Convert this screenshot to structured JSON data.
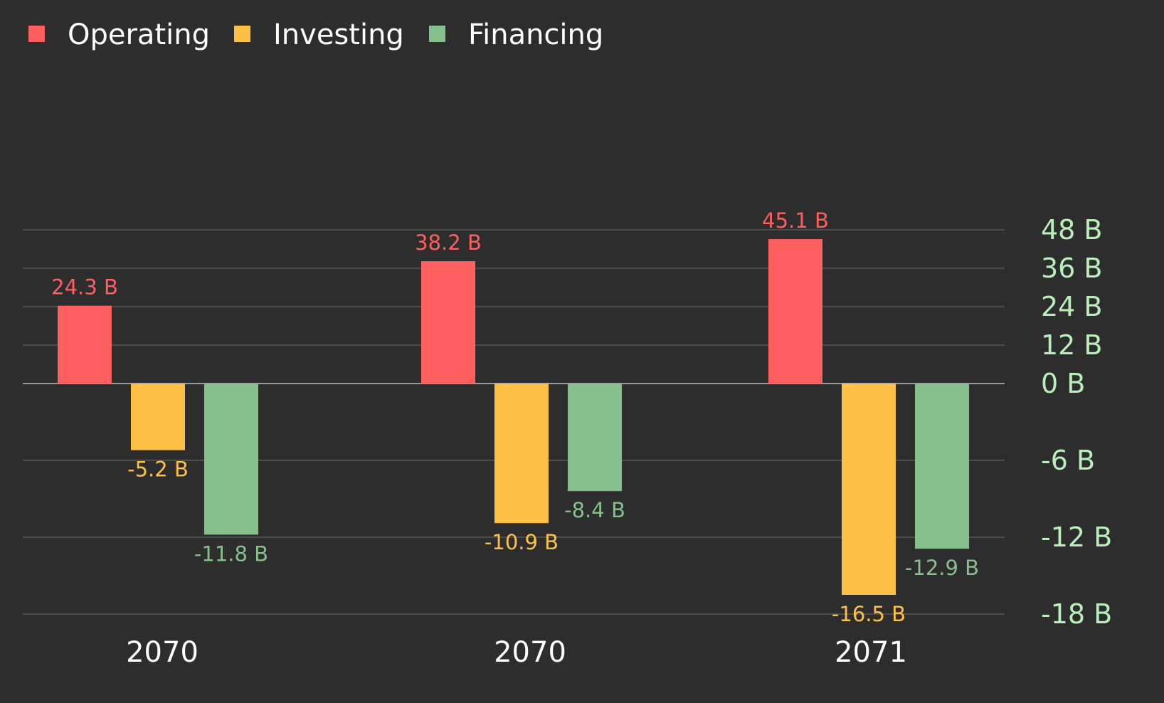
{
  "chart_data": {
    "type": "bar",
    "categories": [
      "2070",
      "2070",
      "2071"
    ],
    "series": [
      {
        "name": "Operating",
        "color": "#ff5f5f",
        "values": [
          24.3,
          38.2,
          45.1
        ],
        "labels": [
          "24.3 B",
          "38.2 B",
          "45.1 B"
        ]
      },
      {
        "name": "Investing",
        "color": "#ffc145",
        "values": [
          -5.2,
          -10.9,
          -16.5
        ],
        "labels": [
          "-5.2 B",
          "-10.9 B",
          "-16.5 B"
        ]
      },
      {
        "name": "Financing",
        "color": "#86c08c",
        "values": [
          -11.8,
          -8.4,
          -12.9
        ],
        "labels": [
          "-11.8 B",
          "-8.4 B",
          "-12.9 B"
        ]
      }
    ],
    "y_axis": {
      "position": "right",
      "positive_ticks": [
        48,
        36,
        24,
        12,
        0
      ],
      "negative_ticks": [
        -6,
        -12,
        -18
      ],
      "tick_labels": {
        "48": "48 B",
        "36": "36 B",
        "24": "24 B",
        "12": "12 B",
        "0": "0 B",
        "-6": "-6 B",
        "-12": "-12 B",
        "-18": "-18 B"
      },
      "ylim": [
        -18,
        48
      ],
      "tick_color": "#b9f0b9"
    },
    "grid": true,
    "legend": {
      "position": "top-left"
    },
    "title": "",
    "xlabel": "",
    "ylabel": ""
  }
}
